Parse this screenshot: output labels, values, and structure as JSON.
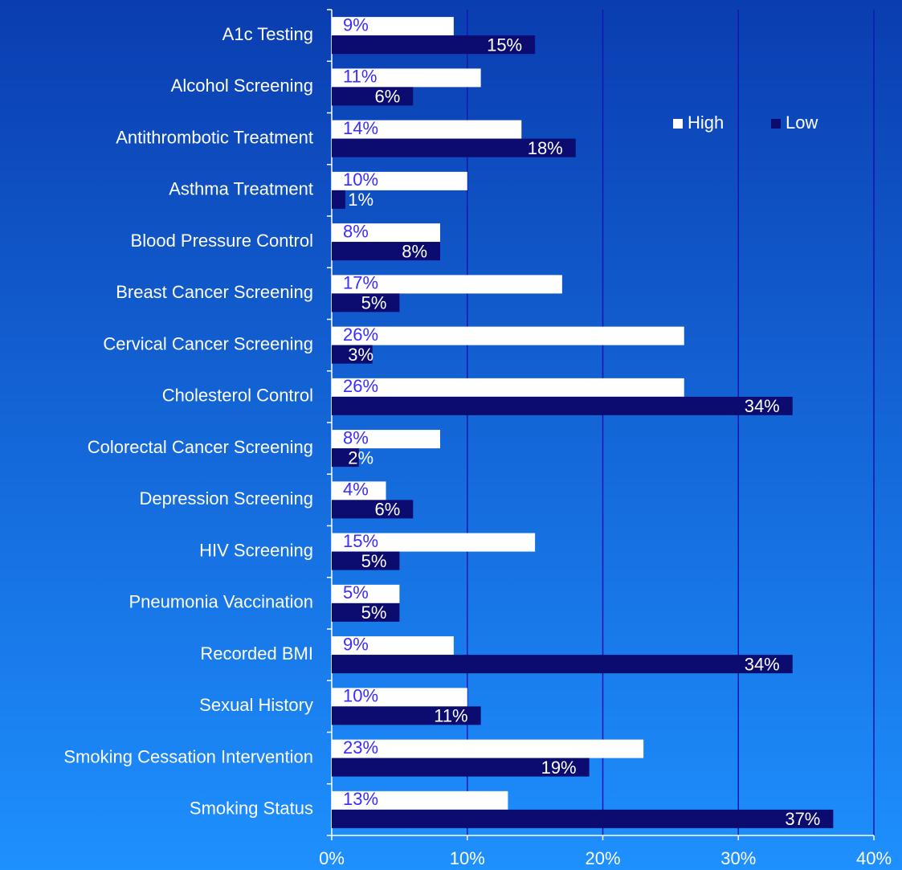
{
  "chart_data": {
    "type": "bar",
    "orientation": "horizontal",
    "categories": [
      "A1c Testing",
      "Alcohol Screening",
      "Antithrombotic Treatment",
      "Asthma Treatment",
      "Blood Pressure Control",
      "Breast Cancer Screening",
      "Cervical Cancer Screening",
      "Cholesterol Control",
      "Colorectal Cancer Screening",
      "Depression Screening",
      "HIV Screening",
      "Pneumonia Vaccination",
      "Recorded BMI",
      "Sexual History",
      "Smoking Cessation Intervention",
      "Smoking Status"
    ],
    "series": [
      {
        "name": "High",
        "color": "#ffffff",
        "values": [
          9,
          11,
          14,
          10,
          8,
          17,
          26,
          26,
          8,
          4,
          15,
          5,
          9,
          10,
          23,
          13
        ],
        "value_labels": [
          "9%",
          "11%",
          "14%",
          "10%",
          "8%",
          "17%",
          "26%",
          "26%",
          "8%",
          "4%",
          "15%",
          "5%",
          "9%",
          "10%",
          "23%",
          "13%"
        ]
      },
      {
        "name": "Low",
        "color": "#0b0b70",
        "values": [
          15,
          6,
          18,
          1,
          8,
          5,
          3,
          34,
          2,
          6,
          5,
          5,
          34,
          11,
          19,
          37
        ],
        "value_labels": [
          "15%",
          "6%",
          "18%",
          "1%",
          "8%",
          "5%",
          "3%",
          "34%",
          "2%",
          "6%",
          "5%",
          "5%",
          "34%",
          "11%",
          "19%",
          "37%"
        ]
      }
    ],
    "xlim": [
      0,
      40
    ],
    "xticks": [
      {
        "value": 0,
        "label": "0%"
      },
      {
        "value": 10,
        "label": "10%"
      },
      {
        "value": 20,
        "label": "20%"
      },
      {
        "value": 30,
        "label": "30%"
      },
      {
        "value": 40,
        "label": "40%"
      }
    ],
    "grid": true,
    "legend": "upper right"
  }
}
